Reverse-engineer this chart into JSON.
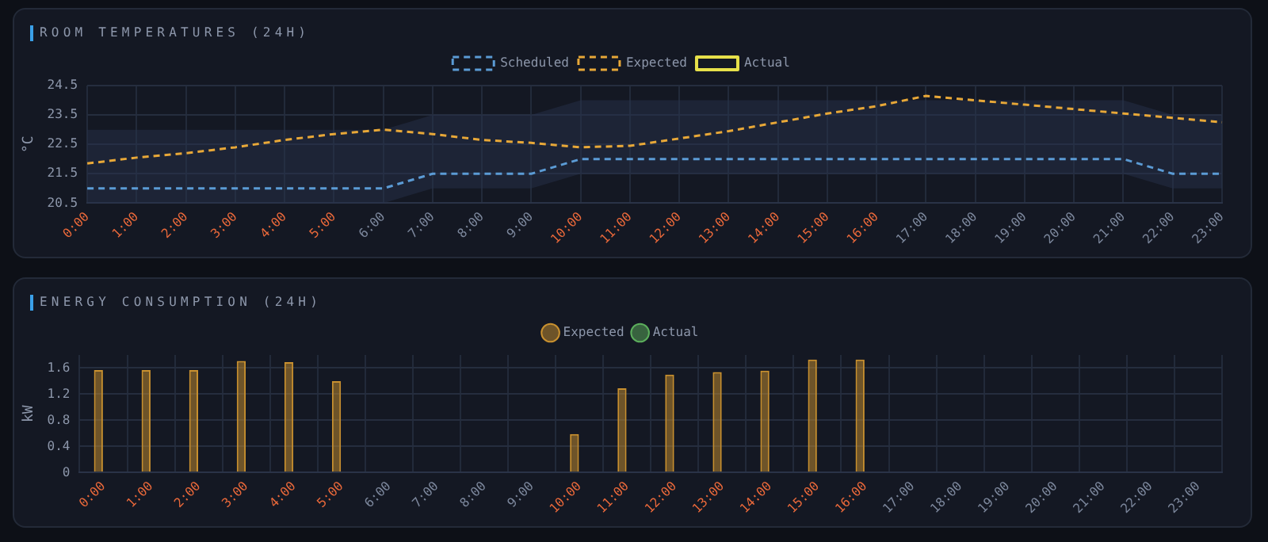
{
  "chart_data": [
    {
      "type": "line",
      "title": "ROOM TEMPERATURES (24H)",
      "ylabel": "°C",
      "categories": [
        "0:00",
        "1:00",
        "2:00",
        "3:00",
        "4:00",
        "5:00",
        "6:00",
        "7:00",
        "8:00",
        "9:00",
        "10:00",
        "11:00",
        "12:00",
        "13:00",
        "14:00",
        "15:00",
        "16:00",
        "17:00",
        "18:00",
        "19:00",
        "20:00",
        "21:00",
        "22:00",
        "23:00"
      ],
      "series": [
        {
          "name": "Scheduled",
          "color": "#5b9bd5",
          "line_style": "dashed",
          "values": [
            21,
            21,
            21,
            21,
            21,
            21,
            21,
            21.5,
            21.5,
            21.5,
            22,
            22,
            22,
            22,
            22,
            22,
            22,
            22,
            22,
            22,
            22,
            22,
            21.5,
            21.5
          ],
          "lower": [
            20.5,
            20.5,
            20.5,
            20.5,
            20.5,
            20.5,
            20.5,
            21,
            21,
            21,
            21.5,
            21.5,
            21.5,
            21.5,
            21.5,
            21.5,
            21.5,
            21.5,
            21.5,
            21.5,
            21.5,
            21.5,
            21,
            21
          ],
          "upper": [
            23,
            23,
            23,
            23,
            23,
            23,
            23,
            23.5,
            23.5,
            23.5,
            24,
            24,
            24,
            24,
            24,
            24,
            24,
            24,
            24,
            24,
            24,
            24,
            23.5,
            23.5
          ]
        },
        {
          "name": "Expected",
          "color": "#e8a838",
          "line_style": "dashed",
          "values": [
            21.85,
            22.05,
            22.2,
            22.4,
            22.65,
            22.85,
            23,
            22.85,
            22.65,
            22.55,
            22.4,
            22.45,
            22.7,
            22.95,
            23.25,
            23.55,
            23.8,
            24.15,
            24,
            23.85,
            23.7,
            23.55,
            23.4,
            23.25
          ]
        },
        {
          "name": "Actual",
          "color": "#e6e04a",
          "line_style": "solid",
          "values": [
            null,
            null,
            null,
            null,
            null,
            null,
            null,
            null,
            null,
            null,
            null,
            null,
            null,
            null,
            null,
            null,
            null,
            null,
            null,
            null,
            null,
            null,
            null,
            null
          ]
        }
      ],
      "ylim": [
        20.5,
        24.5
      ],
      "yticks": [
        20.5,
        21.5,
        22.5,
        23.5,
        24.5
      ],
      "grid": true,
      "legend": "top",
      "marker": "none"
    },
    {
      "type": "bar",
      "title": "ENERGY CONSUMPTION (24H)",
      "ylabel": "kW",
      "categories": [
        "0:00",
        "1:00",
        "2:00",
        "3:00",
        "4:00",
        "5:00",
        "6:00",
        "7:00",
        "8:00",
        "9:00",
        "10:00",
        "11:00",
        "12:00",
        "13:00",
        "14:00",
        "15:00",
        "16:00",
        "17:00",
        "18:00",
        "19:00",
        "20:00",
        "21:00",
        "22:00",
        "23:00"
      ],
      "series": [
        {
          "name": "Expected",
          "color": "#c8902f",
          "values": [
            1.57,
            1.57,
            1.57,
            1.71,
            1.69,
            1.4,
            null,
            null,
            null,
            null,
            0.59,
            1.29,
            1.5,
            1.54,
            1.56,
            1.73,
            1.73,
            null,
            null,
            null,
            null,
            null,
            null,
            null
          ]
        },
        {
          "name": "Actual",
          "color": "#5cae5c",
          "values": [
            null,
            null,
            null,
            null,
            null,
            null,
            null,
            null,
            null,
            null,
            null,
            null,
            null,
            null,
            null,
            null,
            null,
            null,
            null,
            null,
            null,
            null,
            null,
            null
          ]
        }
      ],
      "ylim": [
        0,
        1.8
      ],
      "yticks": [
        0,
        0.4,
        0.8,
        1.2,
        1.6
      ],
      "grid": true,
      "legend": "top"
    }
  ]
}
